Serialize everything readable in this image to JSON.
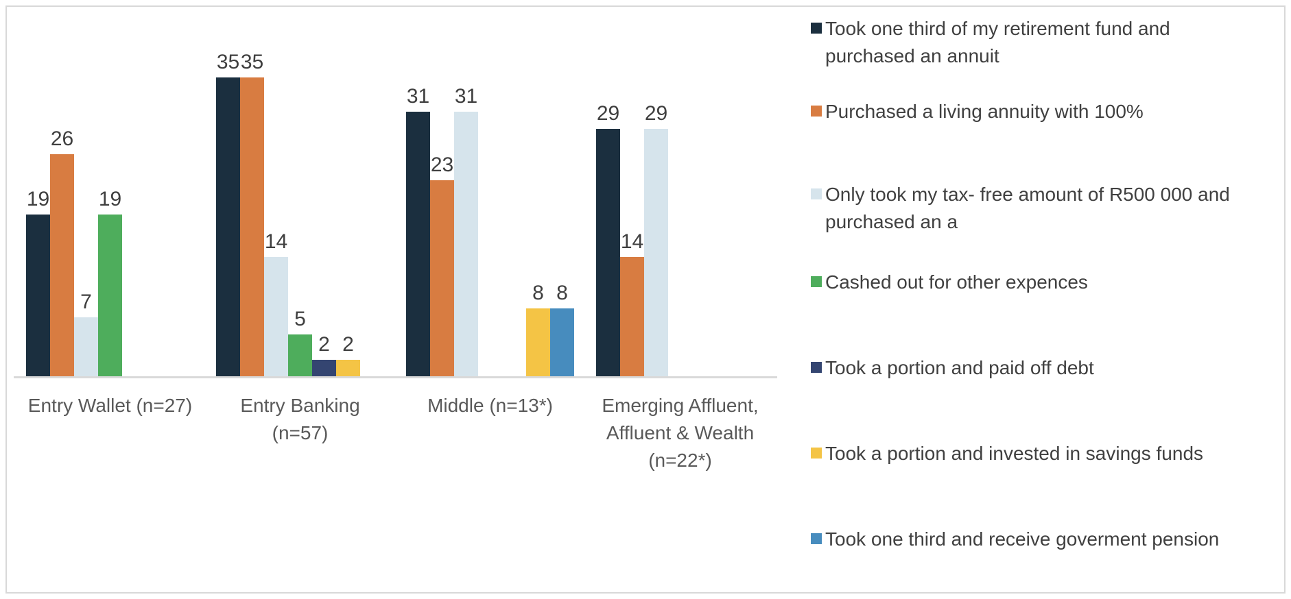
{
  "chart_data": {
    "type": "bar",
    "title": "",
    "xlabel": "",
    "ylabel": "",
    "ylim": [
      0,
      35
    ],
    "gridlines": false,
    "y_axis_visible": false,
    "data_labels": true,
    "legend_position": "right",
    "axis_line_color": "#d9d9d9",
    "frame_border_color": "#d8d8d8",
    "value_label_color": "#3f3f3f",
    "axis_label_color": "#595959",
    "legend_text_color": "#404040",
    "categories": [
      "Entry Wallet (n=27)",
      "Entry Banking (n=57)",
      "Middle (n=13*)",
      "Emerging Affluent, Affluent & Wealth (n=22*)"
    ],
    "category_label_lines": [
      [
        "Entry Wallet (n=27)"
      ],
      [
        "Entry Banking",
        "(n=57)"
      ],
      [
        "Middle (n=13*)"
      ],
      [
        "Emerging Affluent,",
        "Affluent & Wealth",
        "(n=22*)"
      ]
    ],
    "series": [
      {
        "name": "Took one third of my retirement fund and purchased an annuit",
        "legend_lines": [
          "Took one third of my retirement fund and",
          "purchased an annuit"
        ],
        "color": "#1b2f3f",
        "values": [
          19,
          35,
          31,
          29
        ]
      },
      {
        "name": "Purchased a living annuity with 100%",
        "legend_lines": [
          "Purchased a living annuity with 100%"
        ],
        "color": "#d87c41",
        "values": [
          26,
          35,
          23,
          14
        ]
      },
      {
        "name": "Only took my tax- free amount of R500 000 and purchased an a",
        "legend_lines": [
          "Only took my tax- free amount of R500 000 and",
          "purchased an a"
        ],
        "color": "#d6e4ec",
        "values": [
          7,
          14,
          31,
          29
        ]
      },
      {
        "name": "Cashed out for other expences",
        "legend_lines": [
          "Cashed out for other expences"
        ],
        "color": "#4ead5c",
        "values": [
          19,
          5,
          0,
          0
        ]
      },
      {
        "name": "Took a portion and paid off debt",
        "legend_lines": [
          "Took a portion and paid off debt"
        ],
        "color": "#344571",
        "values": [
          0,
          2,
          0,
          0
        ]
      },
      {
        "name": "Took a portion and invested in savings funds",
        "legend_lines": [
          "Took a portion and invested in savings funds"
        ],
        "color": "#f4c445",
        "values": [
          0,
          2,
          8,
          0
        ]
      },
      {
        "name": "Took one third and receive goverment pension",
        "legend_lines": [
          "Took one third and receive goverment pension"
        ],
        "color": "#478cbe",
        "values": [
          0,
          0,
          8,
          0
        ]
      }
    ]
  }
}
